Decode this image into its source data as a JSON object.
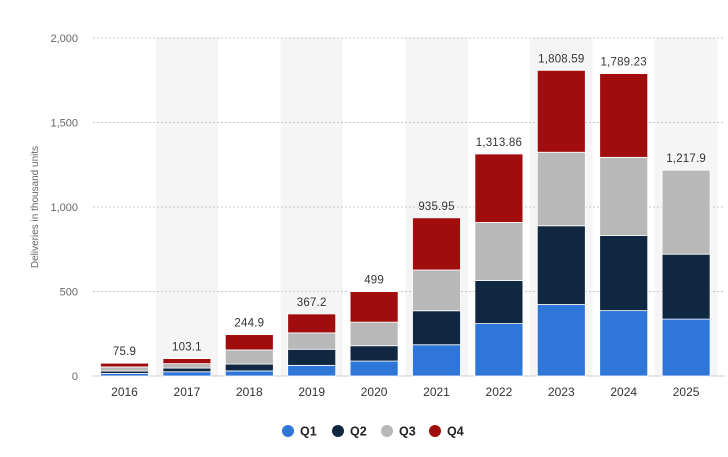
{
  "chart_data": {
    "type": "bar",
    "stacked": true,
    "ylabel": "Deliveries in thousand units",
    "xlabel": "",
    "ylim": [
      0,
      2000
    ],
    "yticks": [
      0,
      500,
      1000,
      1500,
      2000
    ],
    "ytick_labels": [
      "0",
      "500",
      "1,000",
      "1,500",
      "2,000"
    ],
    "grid": true,
    "legend_position": "bottom",
    "categories": [
      "2016",
      "2017",
      "2018",
      "2019",
      "2020",
      "2021",
      "2022",
      "2023",
      "2024",
      "2025"
    ],
    "series": [
      {
        "name": "Q1",
        "color": "#2f76d9",
        "values": [
          14.8,
          25.0,
          30.0,
          63.0,
          88.4,
          184.8,
          310.0,
          422.9,
          386.8,
          336.7
        ]
      },
      {
        "name": "Q2",
        "color": "#0f2740",
        "values": [
          14.4,
          22.0,
          40.7,
          95.2,
          90.7,
          201.3,
          254.7,
          466.1,
          444.0,
          384.1
        ]
      },
      {
        "name": "Q3",
        "color": "#b8b8b8",
        "values": [
          24.5,
          26.1,
          83.5,
          97.0,
          139.6,
          241.3,
          343.8,
          435.1,
          462.9,
          497.1
        ]
      },
      {
        "name": "Q4",
        "color": "#a10d0d",
        "values": [
          22.2,
          30.0,
          90.7,
          112.0,
          180.6,
          308.6,
          405.3,
          484.5,
          495.6,
          0
        ]
      }
    ],
    "totals": [
      75.9,
      103.1,
      244.9,
      367.2,
      499,
      935.95,
      1313.86,
      1808.59,
      1789.23,
      1217.9
    ],
    "total_labels": [
      "75.9",
      "103.1",
      "244.9",
      "367.2",
      "499",
      "935.95",
      "1,313.86",
      "1,808.59",
      "1,789.23",
      "1,217.9"
    ]
  }
}
